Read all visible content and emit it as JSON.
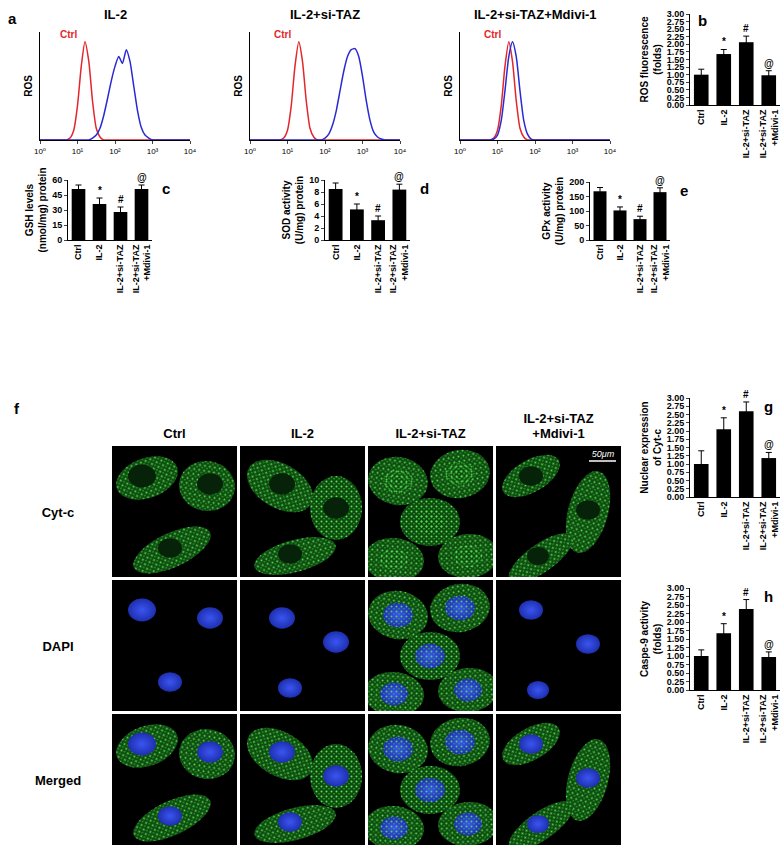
{
  "chart_data": [
    {
      "type": "line",
      "panel": "a",
      "title": "IL-2",
      "y_label": "ROS",
      "log": "x",
      "tick_labels": "x",
      "x": [
        1,
        1.26,
        1.58,
        2,
        2.51,
        3.16,
        3.98,
        5.01,
        6.31,
        7.94,
        10,
        12.6,
        15.8,
        20,
        25.1,
        31.6,
        39.8,
        50.1,
        63.1,
        79.4,
        100,
        126,
        158,
        200,
        251,
        316,
        398,
        501,
        631,
        794,
        1000,
        1259,
        1585,
        1995,
        2512,
        3162,
        3981,
        5012,
        6310,
        7943,
        10000
      ],
      "xlim": [
        1,
        10000
      ],
      "xticks": [
        {
          "value": 1,
          "label": "10⁰"
        },
        {
          "value": 10,
          "label": "10¹"
        },
        {
          "value": 100,
          "label": "10²"
        },
        {
          "value": 1000,
          "label": "10³"
        },
        {
          "value": 10000,
          "label": "10⁴"
        }
      ],
      "ylim": [
        0,
        1.1
      ],
      "series": [
        {
          "name": "Ctrl",
          "color": "#e3262b",
          "values": [
            0,
            0,
            0,
            0,
            0,
            0,
            0,
            0,
            0.02,
            0.1,
            0.35,
            0.75,
            1.0,
            0.8,
            0.4,
            0.12,
            0.03,
            0,
            0,
            0,
            0,
            0,
            0,
            0,
            0,
            0,
            0,
            0,
            0,
            0,
            0,
            0,
            0,
            0,
            0,
            0,
            0,
            0,
            0,
            0,
            0
          ]
        },
        {
          "color": "#2a2ad4",
          "values": [
            0,
            0,
            0,
            0,
            0,
            0,
            0,
            0,
            0,
            0,
            0,
            0,
            0,
            0,
            0.02,
            0.05,
            0.12,
            0.25,
            0.42,
            0.6,
            0.75,
            0.85,
            0.78,
            0.92,
            0.8,
            0.55,
            0.3,
            0.13,
            0.05,
            0.02,
            0,
            0,
            0,
            0,
            0,
            0,
            0,
            0,
            0,
            0,
            0
          ]
        }
      ]
    },
    {
      "type": "line",
      "title": "IL-2+si-TAZ",
      "y_label": "ROS",
      "log": "x",
      "tick_labels": "x",
      "x": [
        1,
        1.26,
        1.58,
        2,
        2.51,
        3.16,
        3.98,
        5.01,
        6.31,
        7.94,
        10,
        12.6,
        15.8,
        20,
        25.1,
        31.6,
        39.8,
        50.1,
        63.1,
        79.4,
        100,
        126,
        158,
        200,
        251,
        316,
        398,
        501,
        631,
        794,
        1000,
        1259,
        1585,
        1995,
        2512,
        3162,
        3981,
        5012,
        6310,
        7943,
        10000
      ],
      "xlim": [
        1,
        10000
      ],
      "xticks": [
        {
          "value": 1,
          "label": "10⁰"
        },
        {
          "value": 10,
          "label": "10¹"
        },
        {
          "value": 100,
          "label": "10²"
        },
        {
          "value": 1000,
          "label": "10³"
        },
        {
          "value": 10000,
          "label": "10⁴"
        }
      ],
      "ylim": [
        0,
        1.1
      ],
      "series": [
        {
          "name": "Ctrl",
          "color": "#e3262b",
          "values": [
            0,
            0,
            0,
            0,
            0,
            0,
            0,
            0,
            0,
            0.02,
            0.1,
            0.35,
            0.75,
            1.0,
            0.8,
            0.4,
            0.12,
            0.03,
            0,
            0,
            0,
            0,
            0,
            0,
            0,
            0,
            0,
            0,
            0,
            0,
            0,
            0,
            0,
            0,
            0,
            0,
            0,
            0,
            0,
            0,
            0
          ]
        },
        {
          "color": "#2a2ad4",
          "values": [
            0,
            0,
            0,
            0,
            0,
            0,
            0,
            0,
            0,
            0,
            0,
            0,
            0,
            0,
            0,
            0,
            0,
            0,
            0,
            0,
            0.02,
            0.06,
            0.15,
            0.3,
            0.5,
            0.7,
            0.85,
            0.92,
            0.93,
            0.85,
            0.65,
            0.4,
            0.2,
            0.08,
            0.03,
            0.01,
            0,
            0,
            0,
            0,
            0
          ]
        }
      ]
    },
    {
      "type": "line",
      "title": "IL-2+si-TAZ+Mdivi-1",
      "y_label": "ROS",
      "log": "x",
      "tick_labels": "x",
      "x": [
        1,
        1.26,
        1.58,
        2,
        2.51,
        3.16,
        3.98,
        5.01,
        6.31,
        7.94,
        10,
        12.6,
        15.8,
        20,
        25.1,
        31.6,
        39.8,
        50.1,
        63.1,
        79.4,
        100,
        126,
        158,
        200,
        251,
        316,
        398,
        501,
        631,
        794,
        1000,
        1259,
        1585,
        1995,
        2512,
        3162,
        3981,
        5012,
        6310,
        7943,
        10000
      ],
      "xlim": [
        1,
        10000
      ],
      "xticks": [
        {
          "value": 1,
          "label": "10⁰"
        },
        {
          "value": 10,
          "label": "10¹"
        },
        {
          "value": 100,
          "label": "10²"
        },
        {
          "value": 1000,
          "label": "10³"
        },
        {
          "value": 10000,
          "label": "10⁴"
        }
      ],
      "ylim": [
        0,
        1.1
      ],
      "series": [
        {
          "name": "Ctrl",
          "color": "#e3262b",
          "values": [
            0,
            0,
            0,
            0,
            0,
            0,
            0,
            0,
            0,
            0.02,
            0.1,
            0.35,
            0.75,
            1.0,
            0.8,
            0.4,
            0.12,
            0.03,
            0,
            0,
            0,
            0,
            0,
            0,
            0,
            0,
            0,
            0,
            0,
            0,
            0,
            0,
            0,
            0,
            0,
            0,
            0,
            0,
            0,
            0,
            0
          ]
        },
        {
          "color": "#2a2ad4",
          "values": [
            0,
            0,
            0,
            0,
            0,
            0,
            0,
            0,
            0,
            0.01,
            0.05,
            0.2,
            0.5,
            0.85,
            1.0,
            0.85,
            0.5,
            0.2,
            0.06,
            0.01,
            0,
            0,
            0,
            0,
            0,
            0,
            0,
            0,
            0,
            0,
            0,
            0,
            0,
            0,
            0,
            0,
            0,
            0,
            0,
            0,
            0
          ]
        }
      ]
    },
    {
      "type": "bar",
      "panel": "b",
      "y_label": [
        "ROS fluorescence",
        "(folds)"
      ],
      "categories": [
        "Ctrl",
        "IL-2",
        "IL-2+si-TAZ",
        "IL-2+si-TAZ +Mdivi-1"
      ],
      "values": [
        1.0,
        1.68,
        2.07,
        0.98
      ],
      "errors": [
        0.18,
        0.15,
        0.2,
        0.15
      ],
      "significance": [
        null,
        "*",
        "#",
        "@"
      ],
      "color": "#000000",
      "ylim": [
        0,
        3
      ],
      "yticks": [
        {
          "value": 0,
          "label": "0.00"
        },
        {
          "value": 0.25,
          "label": "0.25"
        },
        {
          "value": 0.5,
          "label": "0.50"
        },
        {
          "value": 0.75,
          "label": "0.75"
        },
        {
          "value": 1,
          "label": "1.00"
        },
        {
          "value": 1.25,
          "label": "1.25"
        },
        {
          "value": 1.5,
          "label": "1.50"
        },
        {
          "value": 1.75,
          "label": "1.75"
        },
        {
          "value": 2,
          "label": "2.00"
        },
        {
          "value": 2.25,
          "label": "2.25"
        },
        {
          "value": 2.5,
          "label": "2.50"
        },
        {
          "value": 2.75,
          "label": "2.75"
        },
        {
          "value": 3,
          "label": "3.00"
        }
      ]
    },
    {
      "type": "bar",
      "panel": "c",
      "y_label": [
        "GSH levels",
        "(nmol/mg) protein"
      ],
      "categories": [
        "Ctrl",
        "IL-2",
        "IL-2+si-TAZ",
        "IL-2+si-TAZ +Mdivi-1"
      ],
      "values": [
        51,
        36,
        28,
        51
      ],
      "errors": [
        4,
        6,
        5,
        4
      ],
      "significance": [
        null,
        "*",
        "#",
        "@"
      ],
      "color": "#000000",
      "ylim": [
        0,
        60
      ],
      "yticks": [
        0,
        15,
        30,
        45,
        60
      ]
    },
    {
      "type": "bar",
      "panel": "d",
      "y_label": [
        "SOD activity",
        "(U/mg) protein"
      ],
      "categories": [
        "Ctrl",
        "IL-2",
        "IL-2+si-TAZ",
        "IL-2+si-TAZ +Mdivi-1"
      ],
      "values": [
        8.5,
        5.1,
        3.3,
        8.4
      ],
      "errors": [
        1.0,
        0.9,
        0.7,
        0.9
      ],
      "significance": [
        null,
        "*",
        "#",
        "@"
      ],
      "color": "#000000",
      "ylim": [
        0,
        10
      ],
      "yticks": [
        0,
        2,
        4,
        6,
        8,
        10
      ]
    },
    {
      "type": "bar",
      "panel": "e",
      "y_label": [
        "GPx activity",
        "(U/mg) protein"
      ],
      "categories": [
        "Ctrl",
        "IL-2",
        "IL-2+si-TAZ",
        "IL-2+si-TAZ +Mdivi-1"
      ],
      "values": [
        168,
        102,
        72,
        165
      ],
      "errors": [
        13,
        12,
        10,
        15
      ],
      "significance": [
        null,
        "*",
        "#",
        "@"
      ],
      "color": "#000000",
      "ylim": [
        0,
        200
      ],
      "yticks": [
        0,
        50,
        100,
        150,
        200
      ]
    },
    {
      "type": "image",
      "panel": "f",
      "columns": [
        "Ctrl",
        "IL-2",
        "IL-2+si-TAZ",
        "IL-2+si-TAZ +Mdivi-1"
      ],
      "rows": [
        "Cyt-c",
        "DAPI",
        "Merged"
      ],
      "scale_bar": "50μm"
    },
    {
      "type": "bar",
      "panel": "g",
      "y_label": [
        "Nuclear expression",
        "of Cyt-c"
      ],
      "categories": [
        "Ctrl",
        "IL-2",
        "IL-2+si-TAZ",
        "IL-2+si-TAZ +Mdivi-1"
      ],
      "values": [
        1.0,
        2.05,
        2.6,
        1.18
      ],
      "errors": [
        0.4,
        0.35,
        0.28,
        0.17
      ],
      "significance": [
        null,
        "*",
        "#",
        "@"
      ],
      "color": "#000000",
      "ylim": [
        0,
        3
      ],
      "yticks": [
        {
          "value": 0,
          "label": "0.00"
        },
        {
          "value": 0.25,
          "label": "0.25"
        },
        {
          "value": 0.5,
          "label": "0.50"
        },
        {
          "value": 0.75,
          "label": "0.75"
        },
        {
          "value": 1,
          "label": "1.00"
        },
        {
          "value": 1.25,
          "label": "1.25"
        },
        {
          "value": 1.5,
          "label": "1.50"
        },
        {
          "value": 1.75,
          "label": "1.75"
        },
        {
          "value": 2,
          "label": "2.00"
        },
        {
          "value": 2.25,
          "label": "2.25"
        },
        {
          "value": 2.5,
          "label": "2.50"
        },
        {
          "value": 2.75,
          "label": "2.75"
        },
        {
          "value": 3,
          "label": "3.00"
        }
      ]
    },
    {
      "type": "bar",
      "panel": "h",
      "y_label": [
        "Caspe-9 activity",
        "(folds)"
      ],
      "categories": [
        "Ctrl",
        "IL-2",
        "IL-2+si-TAZ",
        "IL-2+si-TAZ +Mdivi-1"
      ],
      "values": [
        1.0,
        1.67,
        2.38,
        0.97
      ],
      "errors": [
        0.18,
        0.28,
        0.28,
        0.15
      ],
      "significance": [
        null,
        "*",
        "#",
        "@"
      ],
      "color": "#000000",
      "ylim": [
        0,
        3
      ],
      "yticks": [
        {
          "value": 0,
          "label": "0.00"
        },
        {
          "value": 0.25,
          "label": "0.25"
        },
        {
          "value": 0.5,
          "label": "0.50"
        },
        {
          "value": 0.75,
          "label": "0.75"
        },
        {
          "value": 1,
          "label": "1.00"
        },
        {
          "value": 1.25,
          "label": "1.25"
        },
        {
          "value": 1.5,
          "label": "1.50"
        },
        {
          "value": 1.75,
          "label": "1.75"
        },
        {
          "value": 2,
          "label": "2.00"
        },
        {
          "value": 2.25,
          "label": "2.25"
        },
        {
          "value": 2.5,
          "label": "2.50"
        },
        {
          "value": 2.75,
          "label": "2.75"
        },
        {
          "value": 3,
          "label": "3.00"
        }
      ]
    }
  ]
}
